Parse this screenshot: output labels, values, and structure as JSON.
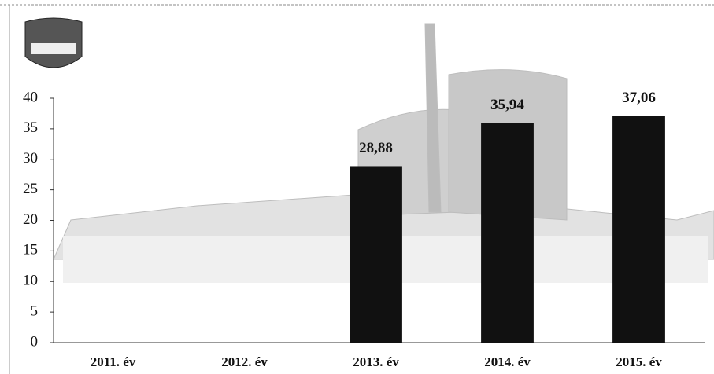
{
  "chart_data": {
    "type": "bar",
    "categories": [
      "2011. év",
      "2012. év",
      "2013. év",
      "2014. év",
      "2015. év"
    ],
    "values": [
      null,
      null,
      28.88,
      35.94,
      37.06
    ],
    "value_labels": [
      null,
      null,
      "28,88",
      "35,94",
      "37,06"
    ],
    "color": "#111111",
    "ylim": [
      0,
      40
    ],
    "yticks": [
      0,
      5,
      10,
      15,
      20,
      25,
      30,
      35,
      40
    ],
    "grid": false
  }
}
